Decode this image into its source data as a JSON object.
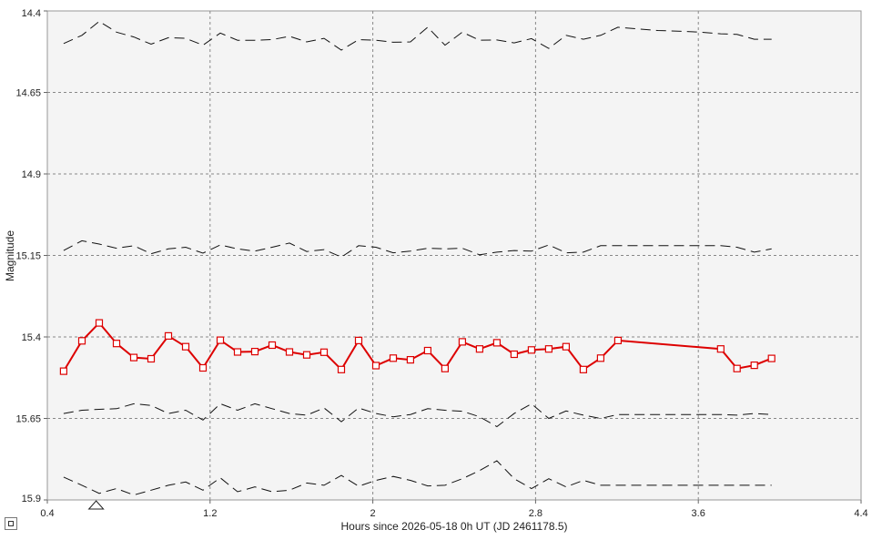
{
  "chart_data": {
    "type": "line",
    "xlabel": "Hours since 2026-05-18 0h UT (JD 2461178.5)",
    "ylabel": "Magnitude",
    "xlim": [
      0.4,
      4.4
    ],
    "ylim": [
      14.4,
      15.9
    ],
    "y_inverted": true,
    "x_ticks": [
      "0.4",
      "1.2",
      "2",
      "2.8",
      "3.6",
      "4.4"
    ],
    "x_tick_values": [
      0.4,
      1.2,
      2.0,
      2.8,
      3.6,
      4.4
    ],
    "y_ticks": [
      "14.4",
      "14.65",
      "14.9",
      "15.15",
      "15.4",
      "15.65",
      "15.9"
    ],
    "y_tick_values": [
      14.4,
      14.65,
      14.9,
      15.15,
      15.4,
      15.65,
      15.9
    ],
    "grid": true,
    "marker_triangle_x": 0.64,
    "x": [
      0.48,
      0.57,
      0.655,
      0.74,
      0.825,
      0.91,
      0.995,
      1.08,
      1.165,
      1.25,
      1.335,
      1.42,
      1.505,
      1.59,
      1.675,
      1.76,
      1.845,
      1.93,
      2.015,
      2.1,
      2.185,
      2.27,
      2.355,
      2.44,
      2.525,
      2.61,
      2.695,
      2.78,
      2.865,
      2.95,
      3.035,
      3.12,
      3.205,
      3.3,
      3.4,
      3.5,
      3.605,
      3.71,
      3.79,
      3.875,
      3.96
    ],
    "series": [
      {
        "color": "#dd0000",
        "style": "solid-markers",
        "values": [
          15.505,
          15.412,
          15.357,
          15.42,
          15.463,
          15.467,
          15.397,
          15.43,
          15.495,
          15.41,
          15.446,
          15.445,
          15.425,
          15.446,
          15.455,
          15.447,
          15.5,
          15.411,
          15.488,
          15.465,
          15.47,
          15.442,
          15.497,
          15.415,
          15.437,
          15.418,
          15.453,
          15.44,
          15.437,
          15.43,
          15.5,
          15.465,
          15.411,
          null,
          null,
          null,
          null,
          15.437,
          15.497,
          15.487,
          15.466
        ]
      },
      {
        "color": "#111111",
        "style": "dashed",
        "values": [
          14.5,
          14.475,
          14.432,
          14.465,
          14.48,
          14.502,
          14.482,
          14.484,
          14.505,
          14.468,
          14.49,
          14.49,
          14.488,
          14.478,
          14.495,
          14.484,
          14.52,
          14.488,
          14.49,
          14.496,
          14.495,
          14.45,
          14.505,
          14.465,
          14.49,
          14.489,
          14.498,
          14.485,
          14.515,
          14.475,
          14.487,
          14.475,
          14.45,
          14.455,
          14.46,
          14.462,
          14.465,
          14.47,
          14.472,
          14.487,
          14.487
        ]
      },
      {
        "color": "#111111",
        "style": "dashed",
        "values": [
          15.135,
          15.105,
          15.115,
          15.128,
          15.12,
          15.145,
          15.13,
          15.125,
          15.143,
          15.118,
          15.13,
          15.137,
          15.125,
          15.112,
          15.138,
          15.132,
          15.155,
          15.12,
          15.125,
          15.142,
          15.137,
          15.128,
          15.13,
          15.128,
          15.148,
          15.14,
          15.135,
          15.137,
          15.118,
          15.142,
          15.14,
          15.12,
          15.12,
          15.12,
          15.12,
          15.12,
          15.12,
          15.12,
          15.125,
          15.14,
          15.13
        ]
      },
      {
        "color": "#111111",
        "style": "dashed",
        "values": [
          15.635,
          15.625,
          15.622,
          15.62,
          15.605,
          15.61,
          15.635,
          15.625,
          15.655,
          15.605,
          15.625,
          15.605,
          15.62,
          15.635,
          15.64,
          15.618,
          15.66,
          15.618,
          15.635,
          15.645,
          15.638,
          15.62,
          15.625,
          15.628,
          15.645,
          15.675,
          15.635,
          15.605,
          15.65,
          15.627,
          15.64,
          15.65,
          15.638,
          15.638,
          15.638,
          15.638,
          15.638,
          15.638,
          15.64,
          15.635,
          15.638
        ]
      },
      {
        "color": "#111111",
        "style": "dashed",
        "values": [
          15.83,
          15.855,
          15.88,
          15.865,
          15.885,
          15.87,
          15.855,
          15.845,
          15.87,
          15.832,
          15.875,
          15.86,
          15.875,
          15.87,
          15.848,
          15.855,
          15.825,
          15.858,
          15.84,
          15.828,
          15.84,
          15.857,
          15.855,
          15.835,
          15.81,
          15.78,
          15.835,
          15.865,
          15.835,
          15.86,
          15.84,
          15.855,
          15.855,
          15.855,
          15.855,
          15.855,
          15.855,
          15.855,
          15.855,
          15.855,
          15.855
        ]
      }
    ]
  }
}
